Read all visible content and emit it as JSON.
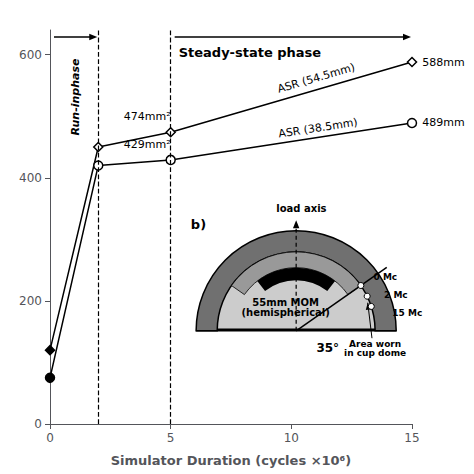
{
  "chart_data": {
    "type": "line",
    "xlabel": "Simulator Duration (cycles ×10⁶)",
    "xlim": [
      0,
      15
    ],
    "ylim": [
      0,
      640
    ],
    "xticks": [
      0,
      5,
      10,
      15
    ],
    "yticks": [
      0,
      200,
      400,
      600
    ],
    "grid": false,
    "x": [
      0,
      2,
      5,
      15
    ],
    "series": [
      {
        "values": [
          120,
          450,
          474,
          588
        ],
        "value_labels": [
          null,
          null,
          "474mm²",
          "588mm"
        ],
        "color": "#000000",
        "marker": "diamond"
      },
      {
        "values": [
          75,
          420,
          429,
          489
        ],
        "value_labels": [
          null,
          null,
          "429mm²",
          "489mm"
        ],
        "color": "#000000",
        "marker": "circle"
      }
    ],
    "vlines": [
      2,
      5
    ],
    "phases": [
      {
        "label": "Run-inphase",
        "start": 0,
        "end": 2
      },
      {
        "label": "Steady-state phase",
        "start": 5,
        "end": 15
      }
    ],
    "annotations": [
      {
        "text": "ASR (54.5mm)",
        "x": 9.5,
        "y": 535
      },
      {
        "text": "ASR (38.5mm)",
        "x": 9.5,
        "y": 462
      }
    ],
    "inset": {
      "label": "b)",
      "caption": "55mm MOM\n(hemispherical)",
      "axis_label": "load axis",
      "angle": 35,
      "angle_label": "35°",
      "wear_marks": [
        "0 Mc",
        "2 Mc",
        "15 Mc"
      ],
      "wear_label": "Area worn\nin cup dome"
    }
  }
}
